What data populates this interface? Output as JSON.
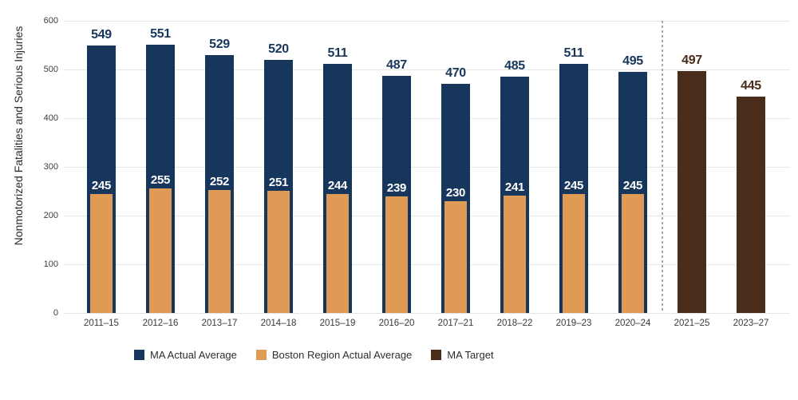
{
  "chart_data": {
    "type": "bar",
    "title": "",
    "xlabel": "",
    "ylabel": "Nonmotorized Fatalities and Serious Injuries",
    "ylim": [
      0,
      600
    ],
    "yticks": [
      0,
      100,
      200,
      300,
      400,
      500,
      600
    ],
    "grid": true,
    "legend_position": "bottom",
    "categories": [
      "2011–15",
      "2012–16",
      "2013–17",
      "2014–18",
      "2015–19",
      "2016–20",
      "2017–21",
      "2018–22",
      "2019–23",
      "2020–24",
      "2021–25",
      "2023–27"
    ],
    "series": [
      {
        "name": "MA Actual Average",
        "color": "#17365c",
        "values": [
          549,
          551,
          529,
          520,
          511,
          487,
          470,
          485,
          511,
          495,
          null,
          null
        ]
      },
      {
        "name": "Boston Region Actual Average",
        "color": "#df9b55",
        "values": [
          245,
          255,
          252,
          251,
          244,
          239,
          230,
          241,
          245,
          245,
          null,
          null
        ]
      },
      {
        "name": "MA Target",
        "color": "#4a2c1b",
        "values": [
          null,
          null,
          null,
          null,
          null,
          null,
          null,
          null,
          null,
          null,
          497,
          445
        ]
      }
    ],
    "separator_after_category": "2020–24"
  },
  "colors": {
    "ma_actual": "#17365c",
    "boston_region": "#df9b55",
    "ma_target": "#4a2c1b",
    "gridline": "#e6e6e6",
    "separator_line": "#a6a6a6",
    "axis_text": "#3d3d3d",
    "background": "#ffffff"
  }
}
